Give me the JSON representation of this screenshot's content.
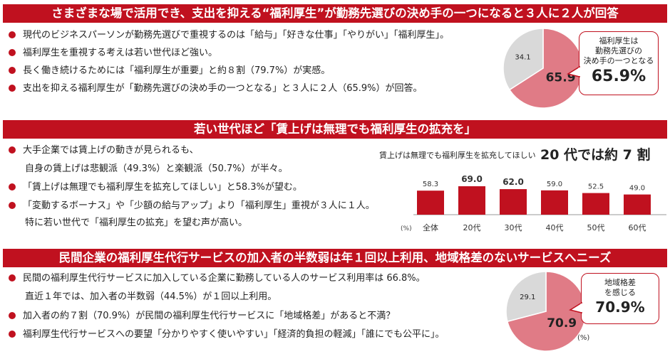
{
  "section1": {
    "title": "さまざまな場で活用でき、支出を抑える“福利厚生”が勤務先選びの決め手の一つになると３人に２人が回答",
    "bullets": [
      "現代のビジネスパーソンが勤務先選びで重視するのは「給与」「好きな仕事」「やりがい」「福利厚生」。",
      "福利厚生を重視する考えは若い世代ほど強い。",
      "長く働き続けるためには「福利厚生が重要」と約８割（79.7%）が実感。",
      "支出を抑える福利厚生が「勤務先選びの決め手の一つとなる」と３人に２人（65.9%）が回答。"
    ],
    "callout": {
      "lines": [
        "福利厚生は",
        "勤務先選びの",
        "決め手の一つとなる"
      ],
      "value": "65.9%"
    },
    "colors": {
      "highlight": "#e07b86",
      "rest": "#d9d9d9"
    }
  },
  "section2": {
    "title": "若い世代ほど「賃上げは無理でも福利厚生の拡充を」",
    "bullets": [
      {
        "text": "大手企業では賃上げの動きが見られるも、",
        "cont": "自身の賃上げは悲観派（49.3%）と楽観派（50.7%）が半々。"
      },
      {
        "text": "「賃上げは無理でも福利厚生を拡充してほしい」と58.3%が望む。",
        "cont": ""
      },
      {
        "text": "「変動するボーナス」や「少額の給与アップ」より「福利厚生」重視が３人に１人。",
        "cont": "特に若い世代で「福利厚生の拡充」を望む声が高い。"
      }
    ],
    "chart_caption": "賃上げは無理でも福利厚生を拡充してほしい",
    "headline": "20 代では約 7 割",
    "unit": "(%)",
    "bar_color": "#c0111f"
  },
  "section3": {
    "title": "民間企業の福利厚生代行サービスの加入者の半数弱は年１回以上利用、地域格差のないサービスへニーズ",
    "bullets": [
      {
        "text": "民間の福利厚生代行サービスに加入している企業に勤務している人のサービス利用率は 66.8%。",
        "cont": "直近１年では、加入者の半数弱（44.5%）が１回以上利用。"
      },
      {
        "text": "加入者の約７割（70.9%）が民間の福利厚生代行サービスに「地域格差」があると不満？",
        "cont": ""
      },
      {
        "text": "福利厚生代行サービスへの要望「分かりやすく使いやすい」「経済的負担の軽減」「誰にでも公平に」。",
        "cont": ""
      }
    ],
    "callout": {
      "lines": [
        "地域格差",
        "を感じる"
      ],
      "value": "70.9%"
    },
    "unit": "(%)"
  },
  "chart_data": [
    {
      "type": "pie",
      "labels": [
        "",
        ""
      ],
      "values": [
        65.9,
        34.1
      ],
      "value_labels": [
        "65.9",
        "34.1"
      ],
      "colors": [
        "#e07b86",
        "#d9d9d9"
      ]
    },
    {
      "type": "bar",
      "title": "賃上げは無理でも福利厚生を拡充してほしい",
      "categories": [
        "全体",
        "20代",
        "30代",
        "40代",
        "50代",
        "60代"
      ],
      "values": [
        58.3,
        69.0,
        62.0,
        59.0,
        52.5,
        49.0
      ],
      "value_labels": [
        "58.3",
        "69.0",
        "62.0",
        "59.0",
        "52.5",
        "49.0"
      ],
      "bold": [
        false,
        true,
        true,
        false,
        false,
        false
      ],
      "ylabel": "(%)"
    },
    {
      "type": "pie",
      "labels": [
        "",
        ""
      ],
      "values": [
        70.9,
        29.1
      ],
      "value_labels": [
        "70.9",
        "29.1"
      ],
      "colors": [
        "#e07b86",
        "#d9d9d9"
      ]
    }
  ]
}
